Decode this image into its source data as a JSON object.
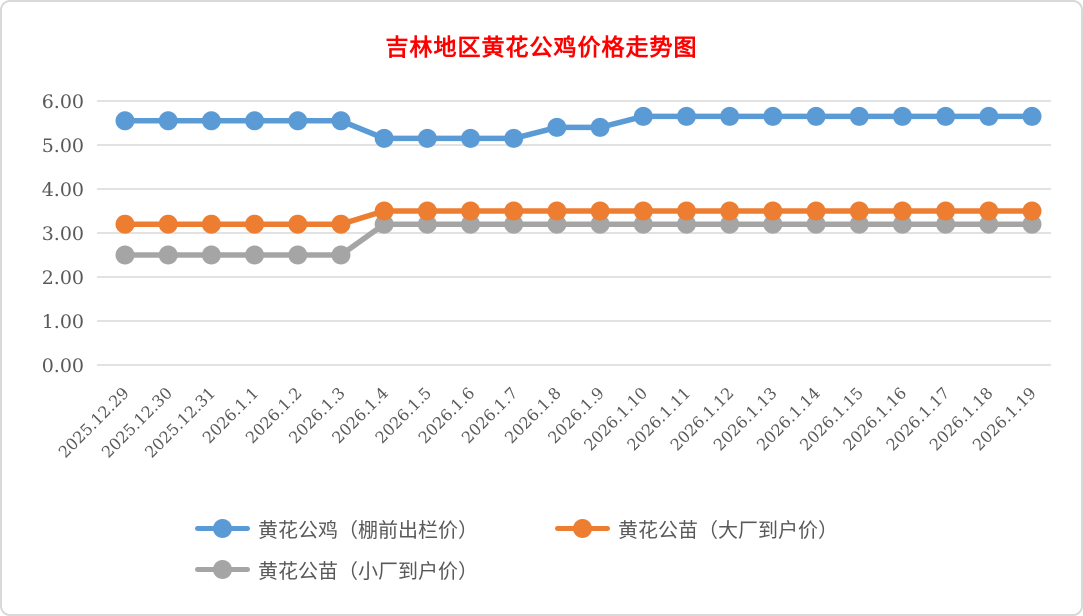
{
  "panel": {
    "background": "#ffffff",
    "border_color": "#d9d9d9"
  },
  "chart_data": {
    "type": "line",
    "title": "吉林地区黄花公鸡价格走势图",
    "title_color": "#ff0000",
    "categories": [
      "2025.12.29",
      "2025.12.30",
      "2025.12.31",
      "2026.1.1",
      "2026.1.2",
      "2026.1.3",
      "2026.1.4",
      "2026.1.5",
      "2026.1.6",
      "2026.1.7",
      "2026.1.8",
      "2026.1.9",
      "2026.1.10",
      "2026.1.11",
      "2026.1.12",
      "2026.1.13",
      "2026.1.14",
      "2026.1.15",
      "2026.1.16",
      "2026.1.17",
      "2026.1.18",
      "2026.1.19"
    ],
    "series": [
      {
        "name": "黄花公鸡（棚前出栏价）",
        "color": "#5B9BD5",
        "values": [
          5.55,
          5.55,
          5.55,
          5.55,
          5.55,
          5.55,
          5.15,
          5.15,
          5.15,
          5.15,
          5.4,
          5.4,
          5.65,
          5.65,
          5.65,
          5.65,
          5.65,
          5.65,
          5.65,
          5.65,
          5.65,
          5.65
        ]
      },
      {
        "name": "黄花公苗（大厂到户价）",
        "color": "#ED7D31",
        "values": [
          3.2,
          3.2,
          3.2,
          3.2,
          3.2,
          3.2,
          3.5,
          3.5,
          3.5,
          3.5,
          3.5,
          3.5,
          3.5,
          3.5,
          3.5,
          3.5,
          3.5,
          3.5,
          3.5,
          3.5,
          3.5,
          3.5
        ]
      },
      {
        "name": "黄花公苗（小厂到户价）",
        "color": "#A5A5A5",
        "values": [
          2.5,
          2.5,
          2.5,
          2.5,
          2.5,
          2.5,
          3.2,
          3.2,
          3.2,
          3.2,
          3.2,
          3.2,
          3.2,
          3.2,
          3.2,
          3.2,
          3.2,
          3.2,
          3.2,
          3.2,
          3.2,
          3.2
        ]
      }
    ],
    "ylim": [
      0,
      6
    ],
    "yticks": [
      "0.00",
      "1.00",
      "2.00",
      "3.00",
      "4.00",
      "5.00",
      "6.00"
    ],
    "grid": true,
    "gridline_color": "#d9d9d9",
    "axis_label_color": "#595959",
    "legend_position": "bottom"
  }
}
